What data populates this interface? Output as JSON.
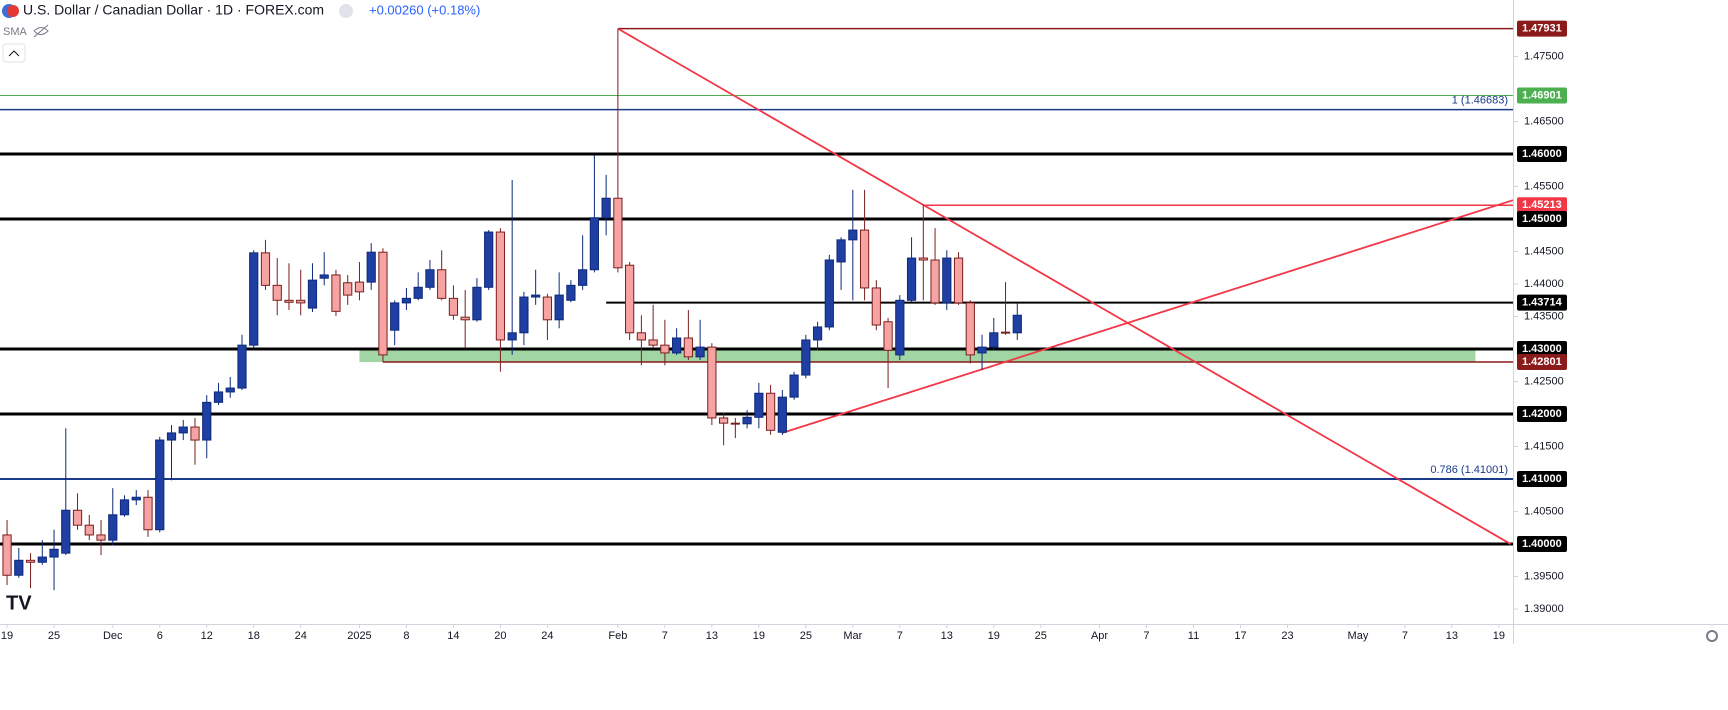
{
  "chart_data": {
    "type": "candlestick",
    "title": "U.S. Dollar / Canadian Dollar · 1D · FOREX.com",
    "change": "+0.00260 (+0.18%)",
    "indicator": "SMA",
    "up_color": "#1f3fa3",
    "down_color": "#f5a3a3",
    "x": [
      0,
      1,
      2,
      3,
      4,
      5,
      6,
      7,
      8,
      9,
      10,
      11,
      12,
      13,
      14,
      15,
      16,
      17,
      18,
      19,
      20,
      21,
      22,
      23,
      24,
      25,
      26,
      27,
      28,
      29,
      30,
      31,
      32,
      33,
      34,
      35,
      36,
      37,
      38,
      39,
      40,
      41,
      42,
      43,
      44,
      45,
      46,
      47,
      48,
      49,
      50,
      51,
      52,
      53,
      54,
      55,
      56,
      57,
      58,
      59,
      60,
      61,
      62,
      63,
      64,
      65,
      66,
      67,
      68,
      69,
      70,
      71,
      72,
      73,
      74,
      75,
      76,
      77,
      78,
      79,
      80,
      81,
      82,
      83,
      84,
      85,
      86
    ],
    "open": [
      1.4014,
      1.3952,
      1.3975,
      1.3972,
      1.398,
      1.3986,
      1.4052,
      1.4029,
      1.4014,
      1.4006,
      1.4045,
      1.4068,
      1.4072,
      1.4022,
      1.416,
      1.4171,
      1.418,
      1.416,
      1.4218,
      1.4234,
      1.424,
      1.4306,
      1.4448,
      1.4398,
      1.4375,
      1.4375,
      1.4363,
      1.4409,
      1.4414,
      1.4402,
      1.4403,
      1.4403,
      1.4449,
      1.4329,
      1.4371,
      1.4378,
      1.4395,
      1.4422,
      1.4378,
      1.4349,
      1.4345,
      1.4395,
      1.448,
      1.4314,
      1.4325,
      1.438,
      1.438,
      1.4345,
      1.4375,
      1.4398,
      1.4422,
      1.4502,
      1.4532,
      1.4429,
      1.4325,
      1.4314,
      1.4306,
      1.4294,
      1.4317,
      1.4288,
      1.4303,
      1.4194,
      1.4186,
      1.4185,
      1.4195,
      1.4232,
      1.4172,
      1.4226,
      1.426,
      1.4314,
      1.4334,
      1.4434,
      1.4468,
      1.4483,
      1.4394,
      1.4342,
      1.4291,
      1.4375,
      1.444,
      1.4437,
      1.4371,
      1.444,
      1.4371,
      1.4294,
      1.4303,
      1.4326,
      1.4325
    ],
    "high": [
      1.4037,
      1.3994,
      1.3986,
      1.4006,
      1.4022,
      1.4178,
      1.4078,
      1.4045,
      1.4037,
      1.4086,
      1.4075,
      1.4083,
      1.4083,
      1.4165,
      1.4183,
      1.4191,
      1.4194,
      1.4229,
      1.4248,
      1.4257,
      1.4322,
      1.4452,
      1.4468,
      1.444,
      1.4432,
      1.4422,
      1.4432,
      1.4449,
      1.4422,
      1.4414,
      1.4434,
      1.4463,
      1.4455,
      1.4375,
      1.4394,
      1.4418,
      1.4437,
      1.4452,
      1.4398,
      1.4391,
      1.4409,
      1.4483,
      1.4486,
      1.456,
      1.4388,
      1.4422,
      1.4385,
      1.4418,
      1.4406,
      1.4475,
      1.4598,
      1.4568,
      1.4793,
      1.4434,
      1.4352,
      1.4368,
      1.4345,
      1.4332,
      1.436,
      1.4345,
      1.4309,
      1.4202,
      1.4194,
      1.4206,
      1.4248,
      1.4245,
      1.4237,
      1.4265,
      1.4322,
      1.4342,
      1.4445,
      1.4472,
      1.4545,
      1.4545,
      1.4406,
      1.4348,
      1.4383,
      1.4472,
      1.4522,
      1.4486,
      1.4452,
      1.4449,
      1.4375,
      1.4322,
      1.4348,
      1.4403,
      1.4371
    ],
    "low": [
      1.3937,
      1.3948,
      1.3932,
      1.3968,
      1.3929,
      1.3983,
      1.4022,
      1.4006,
      1.3983,
      1.3998,
      1.4042,
      1.406,
      1.4011,
      1.4018,
      1.4098,
      1.416,
      1.4122,
      1.4132,
      1.4214,
      1.4225,
      1.4237,
      1.4302,
      1.4391,
      1.4352,
      1.436,
      1.4352,
      1.4357,
      1.4398,
      1.4351,
      1.4368,
      1.4375,
      1.4391,
      1.428,
      1.4306,
      1.436,
      1.4375,
      1.4391,
      1.4375,
      1.4345,
      1.4302,
      1.4342,
      1.4391,
      1.4265,
      1.4291,
      1.4306,
      1.4368,
      1.4314,
      1.4332,
      1.4372,
      1.4391,
      1.4418,
      1.4475,
      1.4418,
      1.4314,
      1.4275,
      1.4302,
      1.4275,
      1.4291,
      1.4283,
      1.4283,
      1.4183,
      1.4152,
      1.4163,
      1.4178,
      1.4178,
      1.4168,
      1.4168,
      1.4222,
      1.4255,
      1.4298,
      1.4329,
      1.4391,
      1.4375,
      1.4375,
      1.4329,
      1.424,
      1.4283,
      1.4372,
      1.4375,
      1.4368,
      1.436,
      1.4368,
      1.4278,
      1.4268,
      1.4298,
      1.4322,
      1.4314
    ],
    "close": [
      1.3952,
      1.3975,
      1.3972,
      1.398,
      1.3992,
      1.4052,
      1.4029,
      1.4014,
      1.4006,
      1.4045,
      1.4068,
      1.4072,
      1.4022,
      1.416,
      1.4171,
      1.418,
      1.416,
      1.4218,
      1.4234,
      1.424,
      1.4306,
      1.4448,
      1.4398,
      1.4375,
      1.4372,
      1.4371,
      1.4406,
      1.4414,
      1.4358,
      1.4383,
      1.4388,
      1.4449,
      1.4291,
      1.4371,
      1.4378,
      1.4395,
      1.4422,
      1.4378,
      1.4352,
      1.4345,
      1.4395,
      1.448,
      1.4314,
      1.4325,
      1.438,
      1.4383,
      1.4345,
      1.4383,
      1.4398,
      1.4422,
      1.4502,
      1.4532,
      1.4425,
      1.4325,
      1.4314,
      1.4306,
      1.4294,
      1.4317,
      1.4288,
      1.4303,
      1.4194,
      1.4186,
      1.4185,
      1.4195,
      1.4232,
      1.4175,
      1.4226,
      1.426,
      1.4314,
      1.4334,
      1.4437,
      1.4468,
      1.4483,
      1.4394,
      1.4337,
      1.4298,
      1.4375,
      1.444,
      1.4437,
      1.4371,
      1.444,
      1.4371,
      1.4291,
      1.4303,
      1.4325,
      1.4325,
      1.4352
    ],
    "xlim": [
      -0.6,
      128.2
    ],
    "ylim": [
      1.3877,
      1.4837
    ],
    "xticks": [
      {
        "value": 0,
        "label": "19"
      },
      {
        "value": 4,
        "label": "25"
      },
      {
        "value": 9,
        "label": "Dec"
      },
      {
        "value": 13,
        "label": "6"
      },
      {
        "value": 17,
        "label": "12"
      },
      {
        "value": 21,
        "label": "18"
      },
      {
        "value": 25,
        "label": "24"
      },
      {
        "value": 30,
        "label": "2025"
      },
      {
        "value": 34,
        "label": "8"
      },
      {
        "value": 38,
        "label": "14"
      },
      {
        "value": 42,
        "label": "20"
      },
      {
        "value": 46,
        "label": "24"
      },
      {
        "value": 52,
        "label": "Feb"
      },
      {
        "value": 56,
        "label": "7"
      },
      {
        "value": 60,
        "label": "13"
      },
      {
        "value": 64,
        "label": "19"
      },
      {
        "value": 68,
        "label": "25"
      },
      {
        "value": 72,
        "label": "Mar"
      },
      {
        "value": 76,
        "label": "7"
      },
      {
        "value": 80,
        "label": "13"
      },
      {
        "value": 84,
        "label": "19"
      },
      {
        "value": 88,
        "label": "25"
      },
      {
        "value": 93,
        "label": "Apr"
      },
      {
        "value": 97,
        "label": "7"
      },
      {
        "value": 101,
        "label": "11"
      },
      {
        "value": 105,
        "label": "17"
      },
      {
        "value": 109,
        "label": "23"
      },
      {
        "value": 115,
        "label": "May"
      },
      {
        "value": 119,
        "label": "7"
      },
      {
        "value": 123,
        "label": "13"
      },
      {
        "value": 127,
        "label": "19"
      }
    ],
    "yticks": [
      {
        "value": 1.475,
        "label": "1.47500"
      },
      {
        "value": 1.465,
        "label": "1.46500"
      },
      {
        "value": 1.455,
        "label": "1.45500"
      },
      {
        "value": 1.445,
        "label": "1.44500"
      },
      {
        "value": 1.44,
        "label": "1.44000"
      },
      {
        "value": 1.435,
        "label": "1.43500"
      },
      {
        "value": 1.425,
        "label": "1.42500"
      },
      {
        "value": 1.415,
        "label": "1.41500"
      },
      {
        "value": 1.405,
        "label": "1.40500"
      },
      {
        "value": 1.395,
        "label": "1.39500"
      },
      {
        "value": 1.39,
        "label": "1.39000"
      }
    ],
    "levels": [
      {
        "value": 1.4793,
        "tag": "1.47931",
        "color": "#8b1a1a",
        "width": 1.5,
        "from": 52
      },
      {
        "value": 1.46901,
        "tag": "1.46901",
        "color": "#4caf50",
        "width": 1
      },
      {
        "value": 1.46683,
        "text": "1 (1.46683)",
        "color": "#1a3a8a",
        "width": 1.5
      },
      {
        "value": 1.46,
        "tag": "1.46000",
        "color": "#000000",
        "width": 3
      },
      {
        "value": 1.45213,
        "tag": "1.45213",
        "color": "#f23645",
        "width": 1.5,
        "from": 78
      },
      {
        "value": 1.45,
        "tag": "1.45000",
        "color": "#000000",
        "width": 3
      },
      {
        "value": 1.43714,
        "tag": "1.43714",
        "color": "#000000",
        "width": 2,
        "from": 51
      },
      {
        "value": 1.43,
        "tag": "1.43000",
        "color": "#000000",
        "width": 3
      },
      {
        "value": 1.42801,
        "tag": "1.42801",
        "color": "#8b1a1a",
        "width": 1.5,
        "from": 32
      },
      {
        "value": 1.42,
        "tag": "1.42000",
        "color": "#000000",
        "width": 3
      },
      {
        "value": 1.41,
        "tag": "1.41000",
        "color": "#000000",
        "width": 2
      },
      {
        "value": 1.41001,
        "text": "0.786 (1.41001)",
        "color": "#1a3a8a",
        "width": 2
      },
      {
        "value": 1.4,
        "tag": "1.40000",
        "color": "#000000",
        "width": 3
      }
    ],
    "zone": {
      "from": 30,
      "to": 125,
      "low": 1.428,
      "high": 1.43,
      "color": "#81c784"
    },
    "trendlines": [
      {
        "x": [
          52,
          128
        ],
        "y": [
          1.4793,
          1.4
        ],
        "color": "#f23645"
      },
      {
        "x": [
          66,
          128.2
        ],
        "y": [
          1.4171,
          1.4529
        ],
        "color": "#f23645"
      }
    ]
  }
}
